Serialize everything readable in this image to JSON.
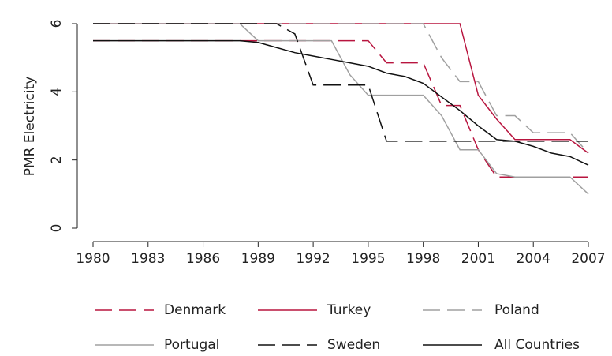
{
  "chart_data": {
    "type": "line",
    "y_label": "PMR Electricity",
    "x": [
      1980,
      1981,
      1982,
      1983,
      1984,
      1985,
      1986,
      1987,
      1988,
      1989,
      1990,
      1991,
      1992,
      1993,
      1994,
      1995,
      1996,
      1997,
      1998,
      1999,
      2000,
      2001,
      2002,
      2003,
      2004,
      2005,
      2006,
      2007
    ],
    "xlim": [
      1980,
      2007
    ],
    "xticks": [
      1980,
      1983,
      1986,
      1989,
      1992,
      1995,
      1998,
      2001,
      2004,
      2007
    ],
    "ylim": [
      0,
      6
    ],
    "yticks": [
      0,
      2,
      4,
      6
    ],
    "series": [
      {
        "name": "Denmark",
        "color": "#b8153f",
        "dashed": true,
        "values": [
          5.5,
          5.5,
          5.5,
          5.5,
          5.5,
          5.5,
          5.5,
          5.5,
          5.5,
          5.5,
          5.5,
          5.5,
          5.5,
          5.5,
          5.5,
          5.5,
          4.85,
          4.85,
          4.85,
          3.6,
          3.6,
          2.3,
          1.5,
          1.5,
          1.5,
          1.5,
          1.5,
          1.5
        ]
      },
      {
        "name": "Turkey",
        "color": "#b8153f",
        "dashed": false,
        "values": [
          6,
          6,
          6,
          6,
          6,
          6,
          6,
          6,
          6,
          6,
          6,
          6,
          6,
          6,
          6,
          6,
          6,
          6,
          6,
          6,
          6,
          3.9,
          3.2,
          2.6,
          2.6,
          2.6,
          2.6,
          2.2
        ]
      },
      {
        "name": "Poland",
        "color": "#a0a0a0",
        "dashed": true,
        "values": [
          6,
          6,
          6,
          6,
          6,
          6,
          6,
          6,
          6,
          6,
          6,
          6,
          6,
          6,
          6,
          6,
          6,
          6,
          6,
          5,
          4.3,
          4.3,
          3.3,
          3.3,
          2.8,
          2.8,
          2.8,
          2.2
        ]
      },
      {
        "name": "Portugal",
        "color": "#a0a0a0",
        "dashed": false,
        "values": [
          6,
          6,
          6,
          6,
          6,
          6,
          6,
          6,
          6,
          5.5,
          5.5,
          5.5,
          5.5,
          5.5,
          4.5,
          3.9,
          3.9,
          3.9,
          3.9,
          3.3,
          2.3,
          2.3,
          1.6,
          1.5,
          1.5,
          1.5,
          1.5,
          1.0
        ]
      },
      {
        "name": "Sweden",
        "color": "#111111",
        "dashed": true,
        "values": [
          6,
          6,
          6,
          6,
          6,
          6,
          6,
          6,
          6,
          6,
          6,
          5.7,
          4.2,
          4.2,
          4.2,
          4.2,
          2.55,
          2.55,
          2.55,
          2.55,
          2.55,
          2.55,
          2.55,
          2.55,
          2.55,
          2.55,
          2.55,
          2.55
        ]
      },
      {
        "name": "All Countries",
        "color": "#111111",
        "dashed": false,
        "values": [
          5.5,
          5.5,
          5.5,
          5.5,
          5.5,
          5.5,
          5.5,
          5.5,
          5.5,
          5.45,
          5.3,
          5.15,
          5.05,
          4.95,
          4.85,
          4.75,
          4.55,
          4.45,
          4.25,
          3.85,
          3.45,
          3.0,
          2.6,
          2.55,
          2.4,
          2.2,
          2.1,
          1.85
        ]
      }
    ]
  }
}
